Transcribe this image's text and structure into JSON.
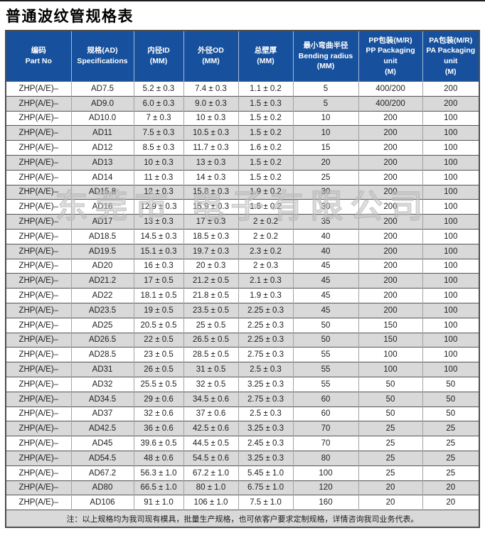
{
  "title": "普通波纹管规格表",
  "watermark": "东莞市 电子有限公司",
  "colors": {
    "header_bg": "#17519d",
    "header_text": "#ffffff",
    "row_alt_bg": "#d9d9d9",
    "border_dark": "#555555",
    "border_light": "#a2a2a2",
    "note_bg": "#d9d9d9"
  },
  "table": {
    "columns": [
      {
        "key": "part-no",
        "lines": [
          "编码",
          "Part No"
        ]
      },
      {
        "key": "specifications",
        "lines": [
          "规格(AD)",
          "Specifications"
        ]
      },
      {
        "key": "inner-diameter",
        "lines": [
          "内径ID",
          "(MM)"
        ]
      },
      {
        "key": "outer-diameter",
        "lines": [
          "外径OD",
          "(MM)"
        ]
      },
      {
        "key": "wall-thickness",
        "lines": [
          "总壁厚",
          "(MM)"
        ]
      },
      {
        "key": "bending-radius",
        "lines": [
          "最小弯曲半径",
          "Bending radius",
          "(MM)"
        ]
      },
      {
        "key": "pp-packaging",
        "lines": [
          "PP包装(M/R)",
          "PP Packaging unit",
          "(M)"
        ]
      },
      {
        "key": "pa-packaging",
        "lines": [
          "PA包装(M/R)",
          "PA Packaging unit",
          "(M)"
        ]
      }
    ],
    "rows": [
      [
        "ZHP(A/E)–",
        "AD7.5",
        "5.2 ± 0.3",
        "7.4 ± 0.3",
        "1.1 ± 0.2",
        "5",
        "400/200",
        "200"
      ],
      [
        "ZHP(A/E)–",
        "AD9.0",
        "6.0 ± 0.3",
        "9.0 ± 0.3",
        "1.5 ± 0.3",
        "5",
        "400/200",
        "200"
      ],
      [
        "ZHP(A/E)–",
        "AD10.0",
        "7 ± 0.3",
        "10 ± 0.3",
        "1.5 ± 0.2",
        "10",
        "200",
        "100"
      ],
      [
        "ZHP(A/E)–",
        "AD11",
        "7.5 ± 0.3",
        "10.5 ± 0.3",
        "1.5 ± 0.2",
        "10",
        "200",
        "100"
      ],
      [
        "ZHP(A/E)–",
        "AD12",
        "8.5 ± 0.3",
        "11.7 ± 0.3",
        "1.6 ± 0.2",
        "15",
        "200",
        "100"
      ],
      [
        "ZHP(A/E)–",
        "AD13",
        "10 ± 0.3",
        "13 ± 0.3",
        "1.5 ± 0.2",
        "20",
        "200",
        "100"
      ],
      [
        "ZHP(A/E)–",
        "AD14",
        "11 ± 0.3",
        "14 ± 0.3",
        "1.5 ± 0.2",
        "25",
        "200",
        "100"
      ],
      [
        "ZHP(A/E)–",
        "AD15.8",
        "12 ± 0.3",
        "15.8 ± 0.3",
        "1.9 ± 0.2",
        "30",
        "200",
        "100"
      ],
      [
        "ZHP(A/E)–",
        "AD16",
        "12.9 ± 0.3",
        "15.9 ± 0.3",
        "1.5 ± 0.2",
        "30",
        "200",
        "100"
      ],
      [
        "ZHP(A/E)–",
        "AD17",
        "13 ± 0.3",
        "17 ± 0.3",
        "2 ± 0.2",
        "35",
        "200",
        "100"
      ],
      [
        "ZHP(A/E)–",
        "AD18.5",
        "14.5 ± 0.3",
        "18.5 ± 0.3",
        "2 ± 0.2",
        "40",
        "200",
        "100"
      ],
      [
        "ZHP(A/E)–",
        "AD19.5",
        "15.1 ± 0.3",
        "19.7 ± 0.3",
        "2.3 ± 0.2",
        "40",
        "200",
        "100"
      ],
      [
        "ZHP(A/E)–",
        "AD20",
        "16 ± 0.3",
        "20 ± 0.3",
        "2 ± 0.3",
        "45",
        "200",
        "100"
      ],
      [
        "ZHP(A/E)–",
        "AD21.2",
        "17 ± 0.5",
        "21.2 ± 0.5",
        "2.1 ± 0.3",
        "45",
        "200",
        "100"
      ],
      [
        "ZHP(A/E)–",
        "AD22",
        "18.1 ± 0.5",
        "21.8 ± 0.5",
        "1.9 ± 0.3",
        "45",
        "200",
        "100"
      ],
      [
        "ZHP(A/E)–",
        "AD23.5",
        "19 ± 0.5",
        "23.5 ± 0.5",
        "2.25 ± 0.3",
        "45",
        "200",
        "100"
      ],
      [
        "ZHP(A/E)–",
        "AD25",
        "20.5 ± 0.5",
        "25 ± 0.5",
        "2.25 ± 0.3",
        "50",
        "150",
        "100"
      ],
      [
        "ZHP(A/E)–",
        "AD26.5",
        "22 ± 0.5",
        "26.5 ± 0.5",
        "2.25 ± 0.3",
        "50",
        "150",
        "100"
      ],
      [
        "ZHP(A/E)–",
        "AD28.5",
        "23 ± 0.5",
        "28.5 ± 0.5",
        "2.75 ± 0.3",
        "55",
        "100",
        "100"
      ],
      [
        "ZHP(A/E)–",
        "AD31",
        "26 ± 0.5",
        "31 ± 0.5",
        "2.5 ± 0.3",
        "55",
        "100",
        "100"
      ],
      [
        "ZHP(A/E)–",
        "AD32",
        "25.5 ± 0.5",
        "32 ± 0.5",
        "3.25 ± 0.3",
        "55",
        "50",
        "50"
      ],
      [
        "ZHP(A/E)–",
        "AD34.5",
        "29 ± 0.6",
        "34.5 ± 0.6",
        "2.75 ± 0.3",
        "60",
        "50",
        "50"
      ],
      [
        "ZHP(A/E)–",
        "AD37",
        "32 ± 0.6",
        "37 ± 0.6",
        "2.5 ± 0.3",
        "60",
        "50",
        "50"
      ],
      [
        "ZHP(A/E)–",
        "AD42.5",
        "36 ± 0.6",
        "42.5 ± 0.6",
        "3.25 ± 0.3",
        "70",
        "25",
        "25"
      ],
      [
        "ZHP(A/E)–",
        "AD45",
        "39.6 ± 0.5",
        "44.5 ± 0.5",
        "2.45 ± 0.3",
        "70",
        "25",
        "25"
      ],
      [
        "ZHP(A/E)–",
        "AD54.5",
        "48 ± 0.6",
        "54.5 ± 0.6",
        "3.25 ± 0.3",
        "80",
        "25",
        "25"
      ],
      [
        "ZHP(A/E)–",
        "AD67.2",
        "56.3 ± 1.0",
        "67.2 ± 1.0",
        "5.45 ± 1.0",
        "100",
        "25",
        "25"
      ],
      [
        "ZHP(A/E)–",
        "AD80",
        "66.5 ± 1.0",
        "80 ± 1.0",
        "6.75 ± 1.0",
        "120",
        "20",
        "20"
      ],
      [
        "ZHP(A/E)–",
        "AD106",
        "91 ± 1.0",
        "106 ± 1.0",
        "7.5 ± 1.0",
        "160",
        "20",
        "20"
      ]
    ],
    "note": "注：以上规格均为我司现有模具，批量生产规格，也可依客户要求定制规格，详情咨询我司业务代表。"
  }
}
